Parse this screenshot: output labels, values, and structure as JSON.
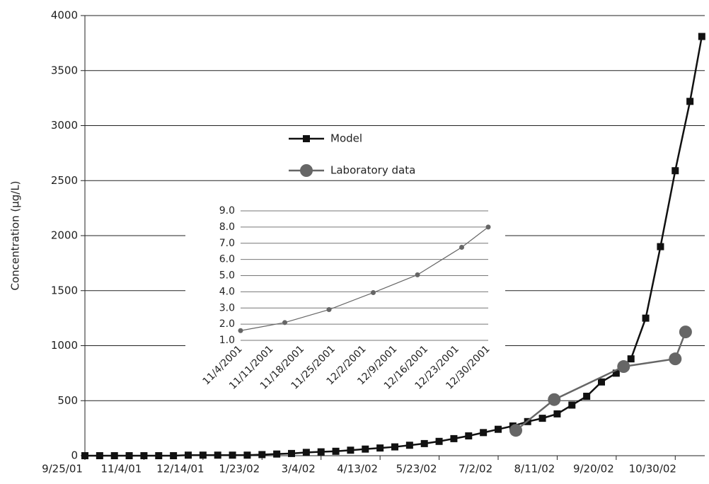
{
  "chart_data": [
    {
      "type": "line",
      "y_label": "Concentration (µg/L)",
      "xlim": [
        0,
        420
      ],
      "xticks": [
        {
          "value": 0,
          "label": "9/25/01"
        },
        {
          "value": 40,
          "label": "11/4/01"
        },
        {
          "value": 80,
          "label": "12/14/01"
        },
        {
          "value": 120,
          "label": "1/23/02"
        },
        {
          "value": 160,
          "label": "3/4/02"
        },
        {
          "value": 200,
          "label": "4/13/02"
        },
        {
          "value": 240,
          "label": "5/23/02"
        },
        {
          "value": 280,
          "label": "7/2/02"
        },
        {
          "value": 320,
          "label": "8/11/02"
        },
        {
          "value": 360,
          "label": "9/20/02"
        },
        {
          "value": 400,
          "label": "10/30/02"
        }
      ],
      "ylim": [
        0,
        4000
      ],
      "yticks": [
        0,
        500,
        1000,
        1500,
        2000,
        2500,
        3000,
        3500,
        4000
      ],
      "grid": true,
      "series": [
        {
          "name": "Model",
          "color": "#111111",
          "marker": "square",
          "x": [
            0,
            10,
            20,
            30,
            40,
            50,
            60,
            70,
            80,
            90,
            100,
            110,
            120,
            130,
            140,
            150,
            160,
            170,
            180,
            190,
            200,
            210,
            220,
            230,
            240,
            250,
            260,
            270,
            280,
            290,
            300,
            310,
            320,
            330,
            340,
            350,
            360,
            370,
            380,
            390,
            400,
            410,
            418
          ],
          "values": [
            0,
            0,
            0,
            0,
            0,
            0,
            0,
            5,
            5,
            5,
            5,
            5,
            10,
            15,
            20,
            30,
            35,
            40,
            50,
            60,
            70,
            80,
            95,
            110,
            130,
            155,
            180,
            210,
            240,
            270,
            310,
            340,
            380,
            460,
            540,
            670,
            750,
            880,
            1250,
            1900,
            2590,
            3220,
            3810
          ]
        },
        {
          "name": "Laboratory data",
          "color": "#666666",
          "marker": "circle",
          "x": [
            292,
            318,
            365,
            400,
            407
          ],
          "values": [
            230,
            510,
            810,
            880,
            1125
          ]
        }
      ]
    },
    {
      "type": "line",
      "xlim": [
        0,
        56
      ],
      "xticks": [
        {
          "value": 0,
          "label": "11/4/2001"
        },
        {
          "value": 7,
          "label": "11/11/2001"
        },
        {
          "value": 14,
          "label": "11/18/2001"
        },
        {
          "value": 21,
          "label": "11/25/2001"
        },
        {
          "value": 28,
          "label": "12/2/2001"
        },
        {
          "value": 35,
          "label": "12/9/2001"
        },
        {
          "value": 42,
          "label": "12/16/2001"
        },
        {
          "value": 49,
          "label": "12/23/2001"
        },
        {
          "value": 56,
          "label": "12/30/2001"
        }
      ],
      "ylim": [
        1,
        9
      ],
      "yticks": [
        {
          "value": 1,
          "label": "1.0"
        },
        {
          "value": 2,
          "label": "2.0"
        },
        {
          "value": 3,
          "label": "3.0"
        },
        {
          "value": 4,
          "label": "4.0"
        },
        {
          "value": 5,
          "label": "5.0"
        },
        {
          "value": 6,
          "label": "6.0"
        },
        {
          "value": 7,
          "label": "7.0"
        },
        {
          "value": 8,
          "label": "8.0"
        },
        {
          "value": 9,
          "label": "9.0"
        }
      ],
      "grid": true,
      "series": [
        {
          "color": "#666666",
          "marker": "circle",
          "x": [
            0,
            10,
            20,
            30,
            40,
            50,
            56
          ],
          "values": [
            1.6,
            2.1,
            2.9,
            3.95,
            5.05,
            6.75,
            8.0
          ]
        }
      ]
    }
  ]
}
